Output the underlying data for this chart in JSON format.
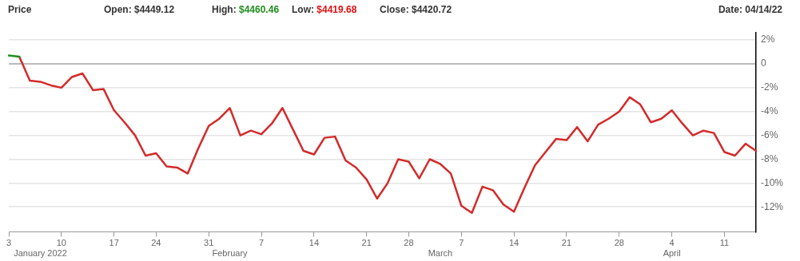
{
  "chart_data": {
    "type": "line",
    "title": "Price",
    "annotations": [
      "Open: $4449.12",
      "High: $4460.46",
      "Low: $4419.68",
      "Close: $4420.72",
      "Date: 04/14/22"
    ],
    "categories": [
      "3",
      null,
      null,
      "\nJanuary 2022",
      null,
      "10",
      null,
      null,
      null,
      null,
      "17",
      null,
      null,
      null,
      "24",
      null,
      null,
      null,
      null,
      "31",
      null,
      "\nFebruary",
      null,
      null,
      "7",
      null,
      null,
      null,
      null,
      "14",
      null,
      null,
      null,
      null,
      "21",
      null,
      null,
      null,
      "28",
      null,
      null,
      "\nMarch",
      null,
      "7",
      null,
      null,
      null,
      null,
      "14",
      null,
      null,
      null,
      null,
      "21",
      null,
      null,
      null,
      null,
      "28",
      null,
      null,
      null,
      null,
      "4\nApril",
      null,
      null,
      null,
      null,
      "11",
      null,
      null,
      null
    ],
    "series": [
      {
        "color": "#1e8f1e",
        "values": [
          0.7,
          0.6,
          null,
          null,
          null,
          null,
          null,
          null,
          null,
          null,
          null,
          null,
          null,
          null,
          null,
          null,
          null,
          null,
          null,
          null,
          null,
          null,
          null,
          null,
          null,
          null,
          null,
          null,
          null,
          null,
          null,
          null,
          null,
          null,
          null,
          null,
          null,
          null,
          null,
          null,
          null,
          null,
          null,
          null,
          null,
          null,
          null,
          null,
          null,
          null,
          null,
          null,
          null,
          null,
          null,
          null,
          null,
          null,
          null,
          null,
          null,
          null,
          null,
          null,
          null,
          null,
          null,
          null,
          null,
          null,
          null,
          null
        ]
      },
      {
        "color": "#d42a2a",
        "values": [
          null,
          0.6,
          -1.4,
          -1.5,
          -1.8,
          -2.0,
          -1.1,
          -0.8,
          -2.2,
          -2.1,
          -3.9,
          -4.9,
          -6.0,
          -7.7,
          -7.5,
          -8.6,
          -8.7,
          -9.2,
          -7.1,
          -5.2,
          -4.6,
          -3.7,
          -6.0,
          -5.6,
          -5.9,
          -5.0,
          -3.7,
          -5.5,
          -7.3,
          -7.6,
          -6.2,
          -6.1,
          -8.1,
          -8.7,
          -9.7,
          -11.3,
          -10.0,
          -8.0,
          -8.2,
          -9.6,
          -8.0,
          -8.4,
          -9.2,
          -11.9,
          -12.5,
          -10.3,
          -10.6,
          -11.8,
          -12.4,
          -10.4,
          -8.5,
          -7.4,
          -6.3,
          -6.4,
          -5.3,
          -6.5,
          -5.1,
          -4.6,
          -4.0,
          -2.8,
          -3.4,
          -4.9,
          -4.6,
          -3.9,
          -5.0,
          -6.0,
          -5.6,
          -5.8,
          -7.4,
          -7.7,
          -6.7,
          -7.3
        ]
      }
    ],
    "ylim": [
      -14.1,
      2.6
    ],
    "yticks": [
      {
        "value": 2,
        "label": "2%"
      },
      0,
      {
        "value": -2,
        "label": "-2%"
      },
      {
        "value": -4,
        "label": "-4%"
      },
      {
        "value": -6,
        "label": "-6%"
      },
      {
        "value": -8,
        "label": "-8%"
      },
      {
        "value": -10,
        "label": "-10%"
      },
      {
        "value": -12,
        "label": "-12%"
      }
    ],
    "grid": "y",
    "legend": false,
    "marker": "none",
    "line_style": "solid"
  }
}
